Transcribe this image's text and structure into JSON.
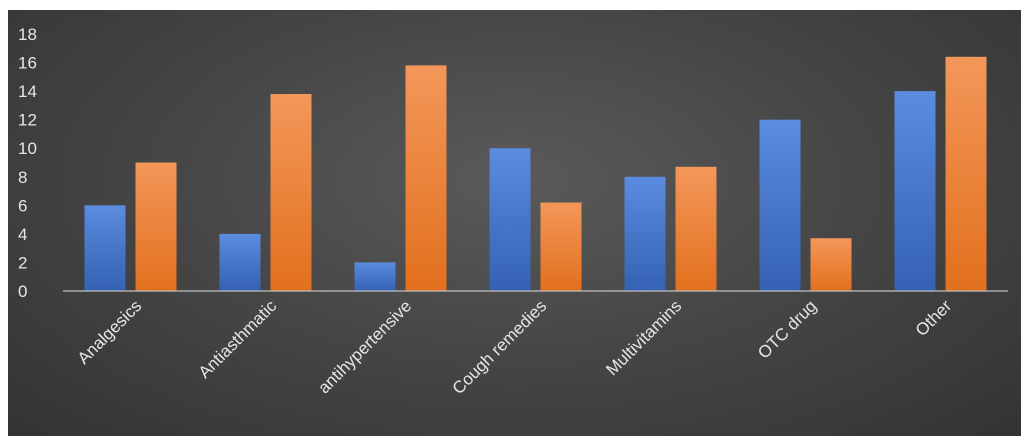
{
  "chart_data": {
    "type": "bar",
    "title": "",
    "xlabel": "",
    "ylabel": "",
    "categories": [
      "Analgesics",
      "Antiasthmatic",
      "antihypertensive",
      "Cough remedies",
      "Multivitamins",
      "OTC drug",
      "Other"
    ],
    "series": [
      {
        "values": [
          6,
          4,
          2,
          10,
          8,
          12,
          14
        ],
        "color": "#4472c4"
      },
      {
        "values": [
          9,
          13.8,
          15.8,
          6.2,
          8.7,
          3.7,
          16.4
        ],
        "color": "#ed7d31"
      }
    ],
    "yticks": [
      0,
      2,
      4,
      6,
      8,
      10,
      12,
      14,
      16,
      18
    ],
    "ylim": [
      0,
      18
    ],
    "grid": false,
    "legend": "none"
  }
}
